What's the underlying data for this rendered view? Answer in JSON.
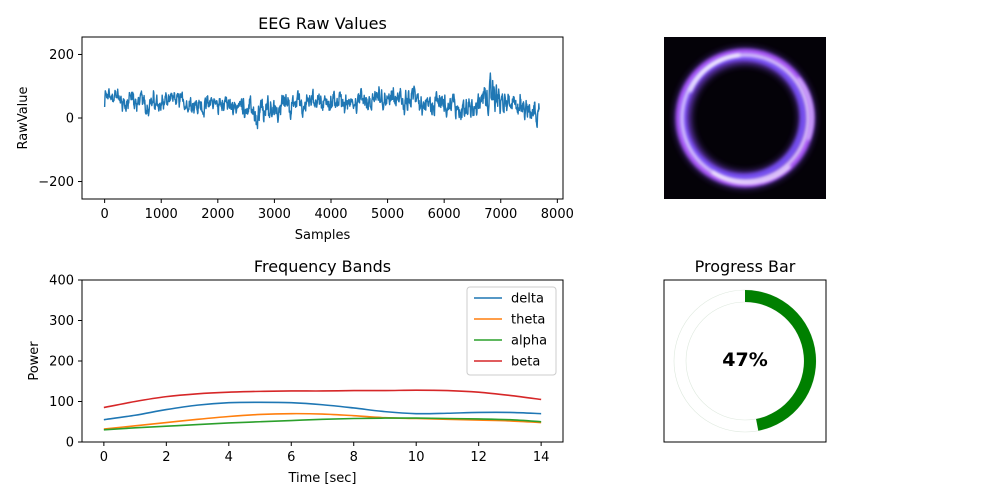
{
  "chart_data": [
    {
      "type": "line",
      "title": "EEG Raw Values",
      "xlabel": "Samples",
      "ylabel": "RawValue",
      "xlim": [
        -400,
        8100
      ],
      "ylim": [
        -255,
        255
      ],
      "xticks": [
        0,
        1000,
        2000,
        3000,
        4000,
        5000,
        6000,
        7000,
        8000
      ],
      "xtick_labels": [
        "0",
        "1000",
        "2000",
        "3000",
        "4000",
        "5000",
        "6000",
        "7000",
        "8000"
      ],
      "yticks": [
        200,
        0,
        -200
      ],
      "ytick_labels": [
        "200",
        "0",
        "−200"
      ],
      "series": [
        {
          "color": "#1f77b4",
          "n_samples": 7680,
          "envelope_x": [
            0,
            500,
            1000,
            1500,
            2000,
            2500,
            2700,
            3000,
            3500,
            4000,
            4500,
            5000,
            5500,
            6000,
            6500,
            6800,
            7000,
            7500,
            7680
          ],
          "envelope_max": [
            110,
            90,
            95,
            90,
            85,
            90,
            85,
            100,
            95,
            100,
            100,
            100,
            105,
            100,
            100,
            145,
            110,
            100,
            90
          ],
          "envelope_min": [
            5,
            -20,
            -10,
            -10,
            -15,
            -25,
            -80,
            -40,
            -20,
            -15,
            -20,
            -20,
            -25,
            -35,
            -40,
            -30,
            -40,
            -50,
            -50
          ]
        }
      ]
    },
    {
      "type": "line",
      "title": "Frequency Bands",
      "xlabel": "Time [sec]",
      "ylabel": "Power",
      "xlim": [
        -0.7,
        14.7
      ],
      "ylim": [
        0,
        400
      ],
      "xticks": [
        0,
        2,
        4,
        6,
        8,
        10,
        12,
        14
      ],
      "yticks": [
        0,
        100,
        200,
        300,
        400
      ],
      "legend_position": "top-right",
      "x": [
        0,
        1,
        2,
        3,
        4,
        5,
        6,
        7,
        8,
        9,
        10,
        11,
        12,
        13,
        14
      ],
      "series": [
        {
          "name": "delta",
          "color": "#1f77b4",
          "values": [
            55,
            66,
            80,
            91,
            97,
            98,
            97,
            92,
            84,
            75,
            70,
            71,
            73,
            73,
            70
          ]
        },
        {
          "name": "theta",
          "color": "#ff7f0e",
          "values": [
            32,
            40,
            48,
            56,
            63,
            68,
            70,
            69,
            65,
            60,
            58,
            56,
            54,
            52,
            48
          ]
        },
        {
          "name": "alpha",
          "color": "#2ca02c",
          "values": [
            30,
            35,
            39,
            43,
            47,
            50,
            53,
            56,
            58,
            59,
            59,
            58,
            57,
            55,
            50
          ]
        },
        {
          "name": "beta",
          "color": "#d62728",
          "values": [
            85,
            100,
            112,
            119,
            123,
            125,
            126,
            126,
            127,
            127,
            128,
            127,
            123,
            115,
            105
          ]
        }
      ]
    },
    {
      "type": "pie",
      "title": "Progress Bar",
      "value_percent": 47,
      "label": "47%",
      "color": "#008000"
    }
  ],
  "image_panel": {
    "name": "glowing-ring-image",
    "background": "#040208",
    "ring_colors": [
      "#b15cff",
      "#7a55ff",
      "#ffffff"
    ]
  }
}
